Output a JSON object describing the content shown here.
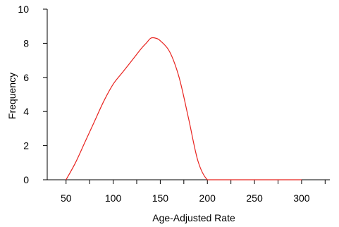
{
  "chart_data": {
    "type": "line",
    "title": "",
    "xlabel": "Age-Adjusted Rate",
    "ylabel": "Frequency",
    "xlim": [
      30,
      330
    ],
    "ylim": [
      0,
      10
    ],
    "x_ticks": [
      50,
      100,
      150,
      200,
      250,
      300
    ],
    "y_ticks": [
      0,
      2,
      4,
      6,
      8,
      10
    ],
    "grid": false,
    "legend": "none",
    "series": [
      {
        "color": "#e8231f",
        "x": [
          50,
          60,
          70,
          80,
          90,
          100,
          110,
          120,
          130,
          135,
          140,
          145,
          150,
          160,
          170,
          180,
          190,
          200,
          210,
          220,
          240,
          260,
          280,
          300
        ],
        "y": [
          0,
          1.0,
          2.2,
          3.4,
          4.6,
          5.6,
          6.3,
          7.0,
          7.7,
          8.0,
          8.3,
          8.3,
          8.15,
          7.5,
          6.0,
          3.6,
          1.1,
          0,
          0,
          0,
          0,
          0,
          0,
          0
        ]
      }
    ]
  }
}
